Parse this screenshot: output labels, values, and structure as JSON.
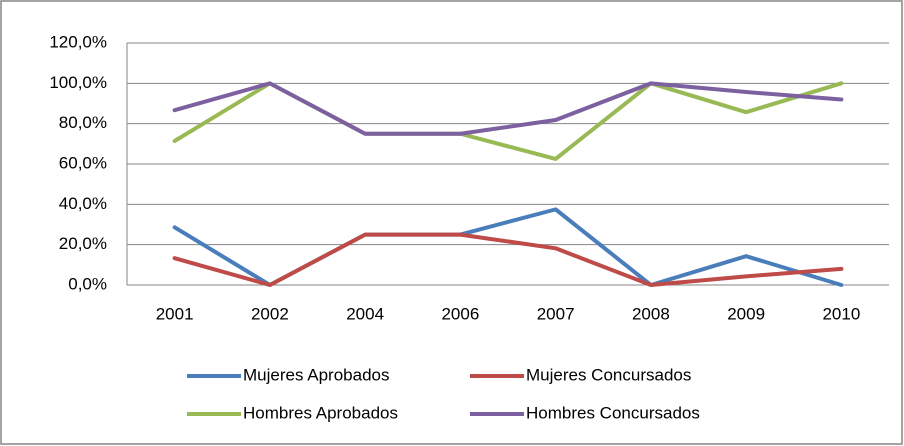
{
  "chart_data": {
    "type": "line",
    "categories": [
      "2001",
      "2002",
      "2004",
      "2006",
      "2007",
      "2008",
      "2009",
      "2010"
    ],
    "series": [
      {
        "name": "Mujeres Aprobados",
        "color": "#4a7ebb",
        "values": [
          28.6,
          0,
          25,
          25,
          37.5,
          0,
          14.3,
          0
        ]
      },
      {
        "name": "Mujeres Concursados",
        "color": "#be4b48",
        "values": [
          13.3,
          0,
          25,
          25,
          18.2,
          0,
          4.3,
          8
        ]
      },
      {
        "name": "Hombres Aprobados",
        "color": "#98b954",
        "values": [
          71.4,
          100,
          75,
          75,
          62.5,
          100,
          85.7,
          100
        ]
      },
      {
        "name": "Hombres Concursados",
        "color": "#7d60a0",
        "values": [
          86.7,
          100,
          75,
          75,
          81.8,
          100,
          95.7,
          92
        ]
      }
    ],
    "ylim": [
      0,
      120
    ],
    "yticks": [
      {
        "value": 0,
        "label": "0,0%"
      },
      {
        "value": 20,
        "label": "20,0%"
      },
      {
        "value": 40,
        "label": "40,0%"
      },
      {
        "value": 60,
        "label": "60,0%"
      },
      {
        "value": 80,
        "label": "80,0%"
      },
      {
        "value": 100,
        "label": "100,0%"
      },
      {
        "value": 120,
        "label": "120,0%"
      }
    ],
    "grid": true,
    "legend": "bottom"
  }
}
